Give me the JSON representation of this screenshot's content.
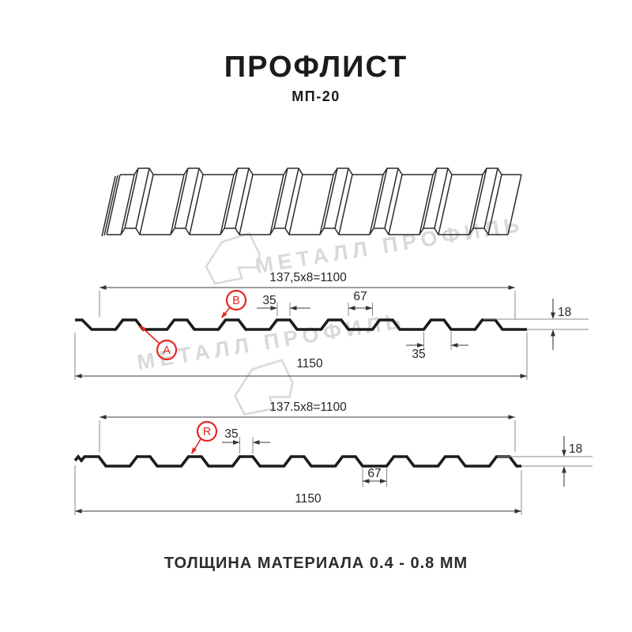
{
  "header": {
    "title": "ПРОФЛИСТ",
    "subtitle": "МП-20"
  },
  "watermark": {
    "text": "МЕТАЛЛ ПРОФИЛЬ"
  },
  "sections": [
    {
      "width_formula": "137,5x8=1100",
      "rib_top_width": "35",
      "flat_width": "67",
      "profile_height": "18",
      "rib_bottom_width": "35",
      "total_width": "1150",
      "point_labels": [
        "A",
        "B"
      ]
    },
    {
      "width_formula": "137.5x8=1100",
      "rib_top_width": "35",
      "flat_width": "67",
      "profile_height": "18",
      "total_width": "1150",
      "point_labels": [
        "R"
      ]
    }
  ],
  "footer": {
    "text": "ТОЛЩИНА МАТЕРИАЛА 0.4 - 0.8 ММ"
  },
  "colors": {
    "ink": "#1b1b1b",
    "dim_lines": "#3c3c3c",
    "accent_red": "#e52620",
    "watermark_gray": "#d9d9d9"
  }
}
